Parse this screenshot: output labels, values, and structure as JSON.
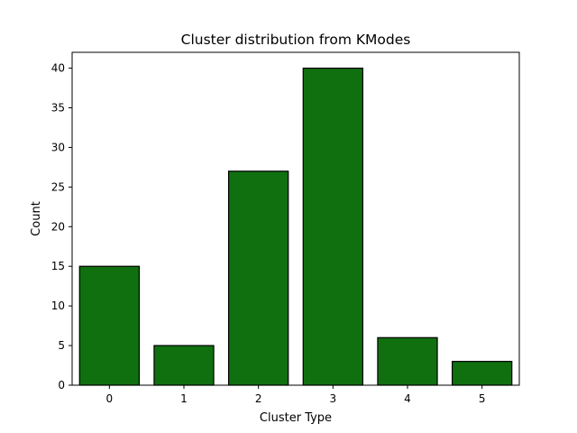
{
  "chart_data": {
    "type": "bar",
    "title": "Cluster distribution from KModes",
    "xlabel": "Cluster Type",
    "ylabel": "Count",
    "categories": [
      "0",
      "1",
      "2",
      "3",
      "4",
      "5"
    ],
    "values": [
      15,
      5,
      27,
      40,
      6,
      3
    ],
    "ylim": [
      0,
      42
    ],
    "yticks": [
      0,
      5,
      10,
      15,
      20,
      25,
      30,
      35,
      40
    ],
    "grid": false,
    "legend": "none",
    "bar_color": "#107010",
    "bar_edge_color": "#000000"
  }
}
